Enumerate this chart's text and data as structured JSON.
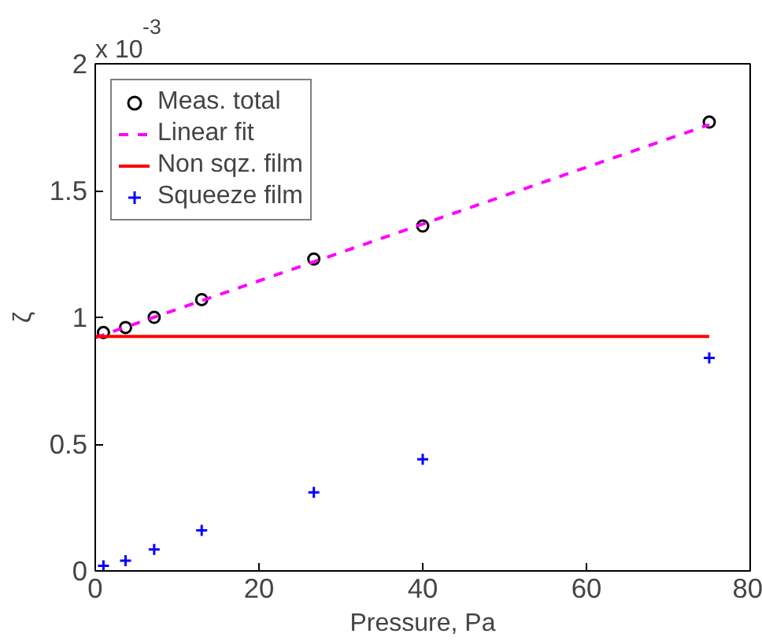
{
  "chart_data": {
    "type": "scatter",
    "xlabel": "Pressure, Pa",
    "ylabel": "ζ",
    "annotations": [
      "x 10$^{-3}$"
    ],
    "xlim": [
      0,
      80
    ],
    "ylim": [
      0,
      2
    ],
    "xticks": [
      0,
      20,
      40,
      60,
      80
    ],
    "yticks": [
      0,
      0.5,
      1,
      1.5,
      2
    ],
    "grid": false,
    "legend": "top left",
    "series": [
      {
        "name": "Meas. total",
        "marker": "circle",
        "color": "#000000",
        "x": [
          1,
          3.7,
          7.2,
          13,
          26.7,
          40,
          75
        ],
        "values": [
          0.94,
          0.96,
          1.0,
          1.07,
          1.23,
          1.36,
          1.77
        ]
      },
      {
        "name": "Linear fit",
        "type": "line",
        "line_style": "dashed",
        "color": "#ff00ff",
        "x": [
          0,
          75
        ],
        "values": [
          0.92,
          1.76
        ]
      },
      {
        "name": "Non sqz. film",
        "type": "line",
        "line_style": "solid",
        "color": "#ff0000",
        "x": [
          0,
          75
        ],
        "values": [
          0.925,
          0.925
        ]
      },
      {
        "name": "Squeeze film",
        "marker": "cross",
        "color": "#0000ff",
        "x": [
          1,
          3.7,
          7.2,
          13,
          26.7,
          40,
          75
        ],
        "values": [
          0.02,
          0.04,
          0.085,
          0.16,
          0.31,
          0.44,
          0.84
        ]
      }
    ]
  }
}
